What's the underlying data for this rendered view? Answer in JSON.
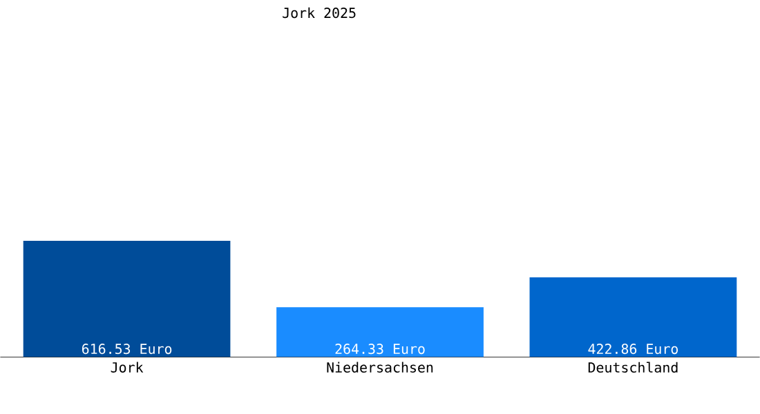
{
  "chart_data": {
    "type": "bar",
    "title": "Jork 2025",
    "categories": [
      "Jork",
      "Niedersachsen",
      "Deutschland"
    ],
    "values": [
      616.53,
      264.33,
      422.86
    ],
    "colors": [
      "#004c99",
      "#1a8cff",
      "#0066cc"
    ],
    "value_labels": [
      "616.53 Euro",
      "264.33 Euro",
      "422.86 Euro"
    ]
  }
}
